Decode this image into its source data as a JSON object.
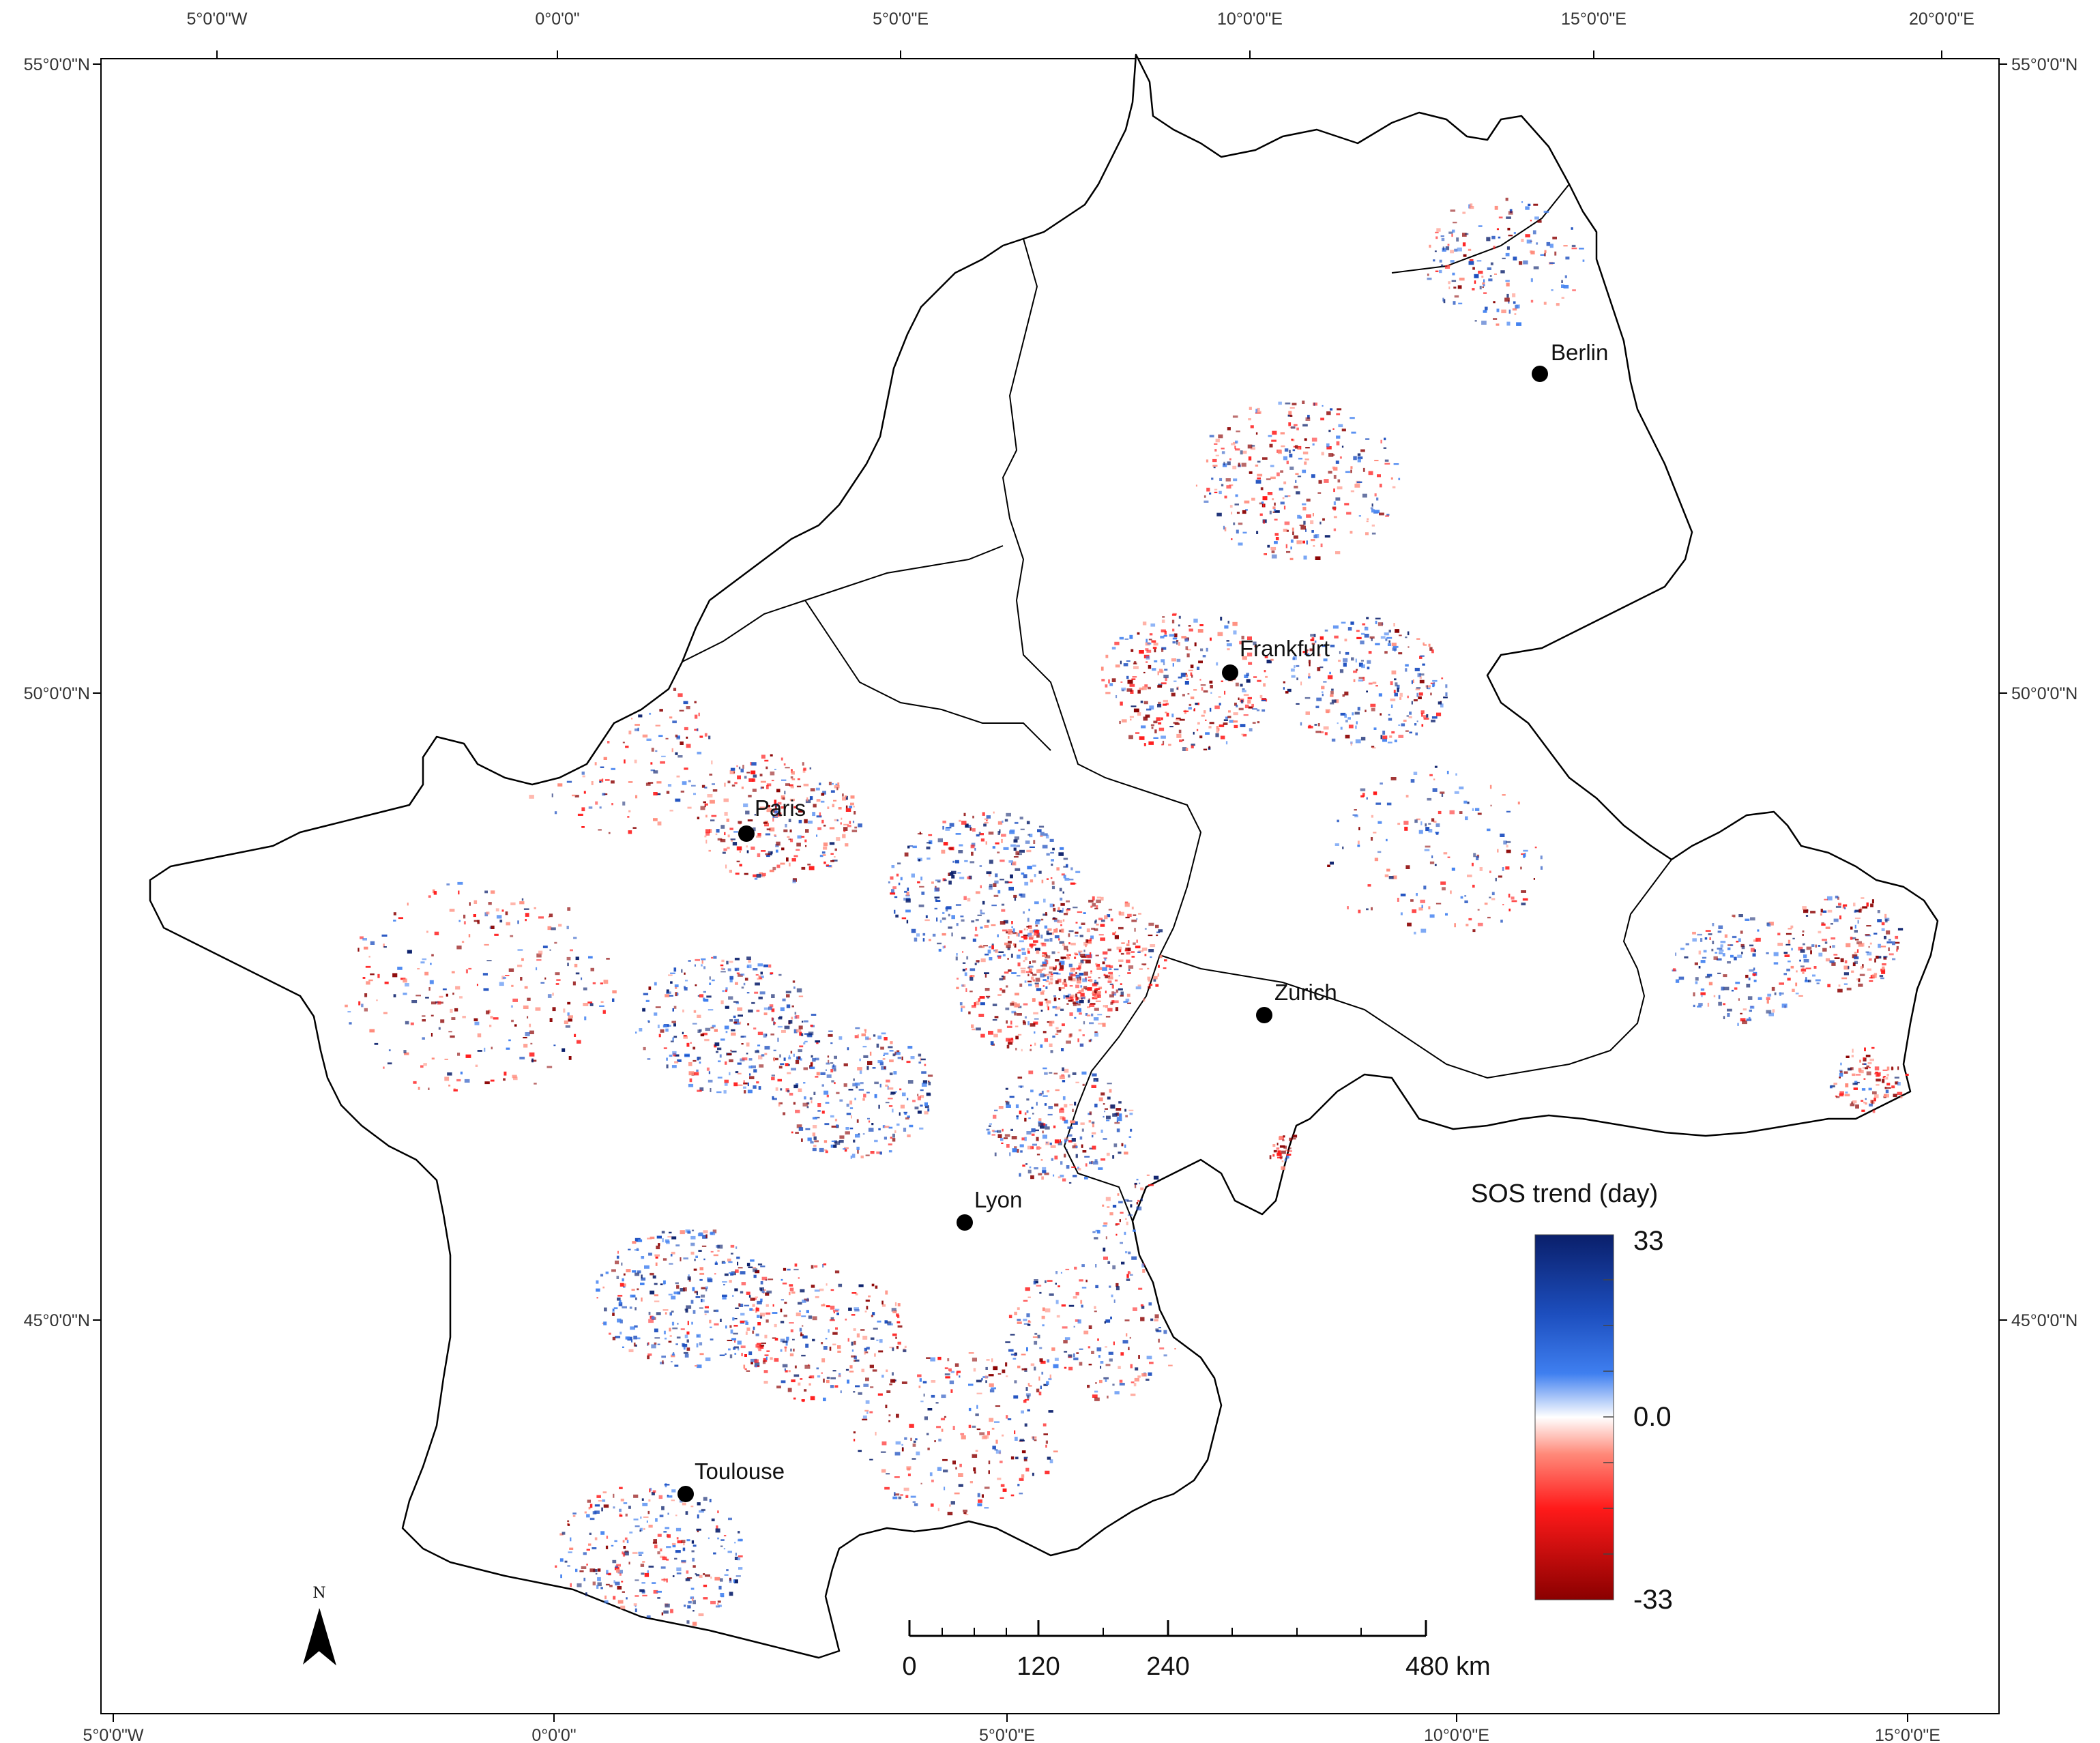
{
  "map": {
    "top_axis_labels": [
      "5°0'0\"W",
      "0°0'0\"",
      "5°0'0\"E",
      "10°0'0\"E",
      "15°0'0\"E",
      "20°0'0\"E"
    ],
    "bottom_axis_labels": [
      "5°0'0\"W",
      "0°0'0\"",
      "5°0'0\"E",
      "10°0'0\"E",
      "15°0'0\"E"
    ],
    "left_axis_labels": [
      "55°0'0\"N",
      "50°0'0\"N",
      "45°0'0\"N"
    ],
    "right_axis_labels": [
      "55°0'0\"N",
      "50°0'0\"N",
      "45°0'0\"N"
    ],
    "cities": [
      {
        "name": "Berlin"
      },
      {
        "name": "Frankfurt"
      },
      {
        "name": "Paris"
      },
      {
        "name": "Zurich"
      },
      {
        "name": "Lyon"
      },
      {
        "name": "Toulouse"
      }
    ]
  },
  "legend": {
    "title": "SOS trend (day)",
    "max_label": "33",
    "mid_label": "0.0",
    "min_label": "-33",
    "colors": [
      "#0a1f6b",
      "#1d4fbf",
      "#3f7ff0",
      "#ffffff",
      "#ff8a7a",
      "#ff1a1a",
      "#8a0000"
    ]
  },
  "scale_bar": {
    "labels": [
      "0",
      "120",
      "240",
      "480 km"
    ]
  },
  "north_arrow": {
    "label": "N"
  }
}
